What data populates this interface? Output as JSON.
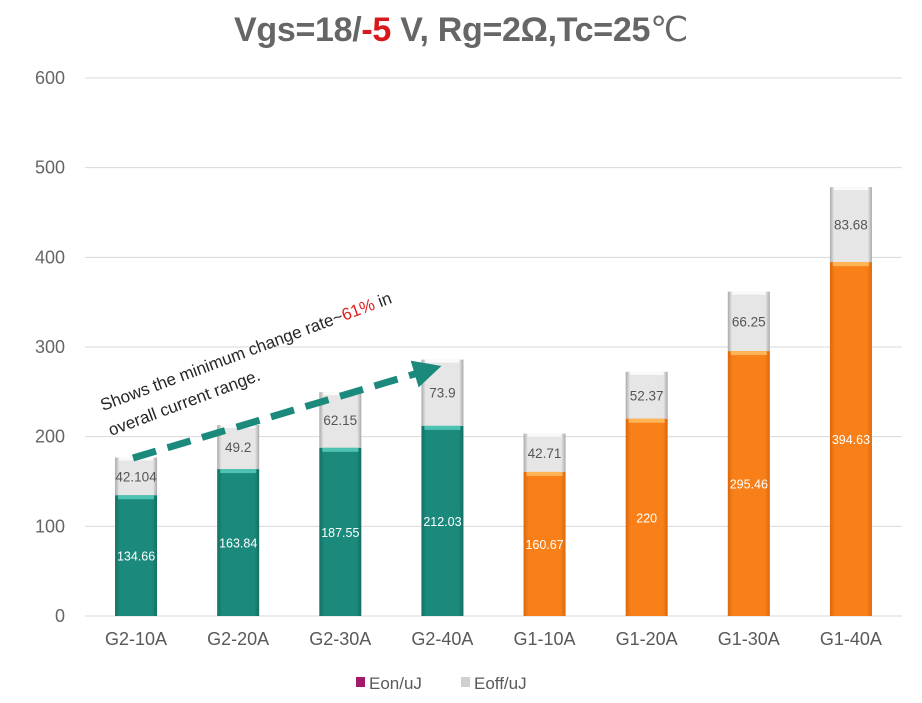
{
  "chart_data": {
    "type": "bar",
    "stacked": true,
    "title": {
      "prefix": "Vgs=18/",
      "highlight": "-5",
      "suffix": " V, Rg=2Ω,Tc=25",
      "unit": "℃",
      "highlight_color": "#d9181c"
    },
    "xlabel": "",
    "ylabel": "",
    "ylim": [
      0,
      600
    ],
    "yticks": [
      0,
      100,
      200,
      300,
      400,
      500,
      600
    ],
    "grid": true,
    "categories": [
      "G2-10A",
      "G2-20A",
      "G2-30A",
      "G2-40A",
      "G1-10A",
      "G1-20A",
      "G1-30A",
      "G1-40A"
    ],
    "series": [
      {
        "name": "Eon/uJ",
        "values": [
          134.66,
          163.84,
          187.55,
          212.03,
          160.67,
          220,
          295.46,
          394.63
        ],
        "labels": [
          "134.66",
          "163.84",
          "187.55",
          "212.03",
          "160.67",
          "220",
          "295.46",
          "394.63"
        ],
        "bar_colors": [
          "#1b8a7c",
          "#1b8a7c",
          "#1b8a7c",
          "#1b8a7c",
          "#f57f17",
          "#f57f17",
          "#f57f17",
          "#f57f17"
        ],
        "legend_color": "#a3196b"
      },
      {
        "name": "Eoff/uJ",
        "values": [
          42.104,
          49.2,
          62.15,
          73.9,
          42.71,
          52.37,
          66.25,
          83.68
        ],
        "labels": [
          "42.104",
          "49.2",
          "62.15",
          "73.9",
          "42.71",
          "52.37",
          "66.25",
          "83.68"
        ],
        "bar_color": "#e3e3e3",
        "legend_color": "#d0d0d0"
      }
    ],
    "legend": {
      "placement": "bottom-center"
    },
    "annotation": {
      "text_before": "Shows the minimum change rate~",
      "text_highlight": "61%",
      "text_after": " in",
      "line2": "overall current range.",
      "highlight_color": "#e02020",
      "arrow": {
        "from_category": "G2-10A",
        "to_category": "G2-40A",
        "style": "dashed",
        "color": "#1b8a7c"
      }
    }
  }
}
